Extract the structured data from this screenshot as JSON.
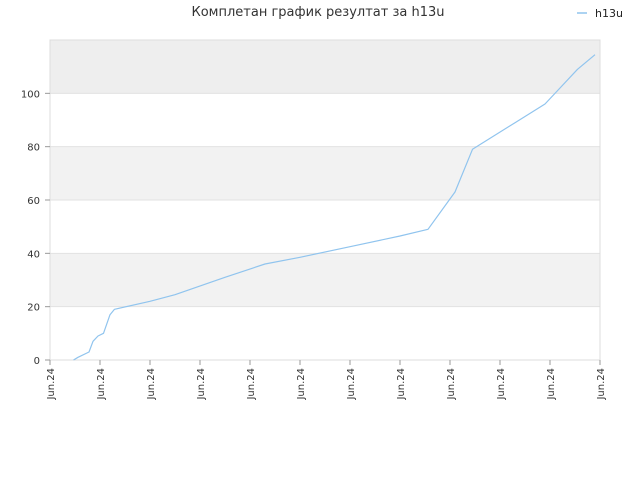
{
  "chart_data": {
    "type": "line",
    "title": "Комплетан график резултат за h13u",
    "xlabel": "",
    "ylabel": "",
    "ylim": [
      0,
      120
    ],
    "xlim": [
      0,
      11
    ],
    "y_ticks": [
      0,
      20,
      40,
      60,
      80,
      100
    ],
    "x_ticks": [
      {
        "x": 0,
        "label": "Jun.24"
      },
      {
        "x": 1,
        "label": "Jun.24"
      },
      {
        "x": 2,
        "label": "Jun.24"
      },
      {
        "x": 3,
        "label": "Jun.24"
      },
      {
        "x": 4,
        "label": "Jun.24"
      },
      {
        "x": 5,
        "label": "Jun.24"
      },
      {
        "x": 6,
        "label": "Jun.24"
      },
      {
        "x": 7,
        "label": "Jun.24"
      },
      {
        "x": 8,
        "label": "Jun.24"
      },
      {
        "x": 9,
        "label": "Jun.24"
      },
      {
        "x": 10,
        "label": "Jun.24"
      },
      {
        "x": 11,
        "label": "Jun.24"
      }
    ],
    "grid": true,
    "band_colors": [
      "#eeeeee",
      "#ffffff",
      "#f2f2f2",
      "#ffffff",
      "#f2f2f2",
      "#ffffff"
    ],
    "legend": {
      "position": "top-right"
    },
    "series": [
      {
        "name": "h13u",
        "color": "#90c4ee",
        "x": [
          0.47,
          0.56,
          0.78,
          0.86,
          0.96,
          1.07,
          1.2,
          1.29,
          2.0,
          2.5,
          3.5,
          4.3,
          5.0,
          6.0,
          7.0,
          7.56,
          8.1,
          8.45,
          9.3,
          9.9,
          10.2,
          10.55,
          10.9
        ],
        "y": [
          0,
          1,
          3,
          7,
          9,
          10,
          17,
          19,
          22,
          24.5,
          31,
          36,
          38.5,
          42.5,
          46.5,
          49,
          63,
          79,
          89,
          96,
          102,
          109,
          114.5
        ]
      }
    ]
  }
}
